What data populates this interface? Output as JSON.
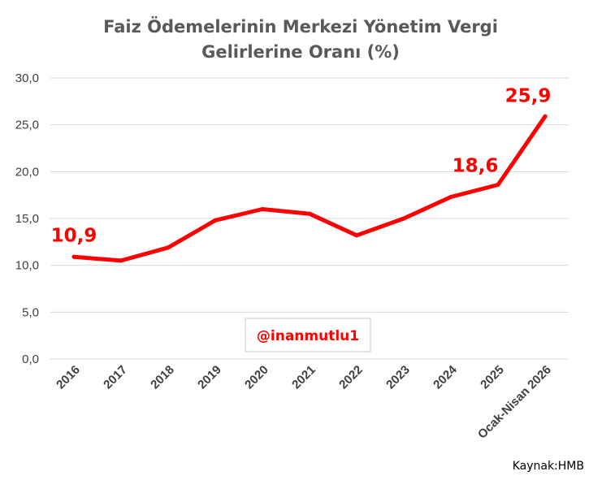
{
  "chart_data": {
    "type": "line",
    "title_lines": [
      "Faiz Ödemelerinin Merkezi Yönetim Vergi",
      "Gelirlerine Oranı (%)"
    ],
    "categories": [
      "2016",
      "2017",
      "2018",
      "2019",
      "2020",
      "2021",
      "2022",
      "2023",
      "2024",
      "2025",
      "Ocak-Nisan 2026"
    ],
    "series": [
      {
        "values": [
          10.9,
          10.5,
          11.9,
          14.8,
          16.0,
          15.5,
          13.2,
          15.0,
          17.3,
          18.6,
          25.9
        ],
        "color": "#ff0000"
      }
    ],
    "ylim": [
      0,
      30
    ],
    "yticks": [
      {
        "value": 0,
        "label": "0,0"
      },
      {
        "value": 5,
        "label": "5,0"
      },
      {
        "value": 10,
        "label": "10,0"
      },
      {
        "value": 15,
        "label": "15,0"
      },
      {
        "value": 20,
        "label": "20,0"
      },
      {
        "value": 25,
        "label": "25,0"
      },
      {
        "value": 30,
        "label": "30,0"
      }
    ],
    "data_labels": [
      {
        "index": 0,
        "label": "10,9"
      },
      {
        "index": 9,
        "label": "18,6"
      },
      {
        "index": 10,
        "label": "25,9"
      }
    ],
    "grid": true,
    "gridline_color": "#d9d9d9",
    "legend": "none",
    "watermark": "@inanmutlu1",
    "source": "Kaynak:HMB"
  }
}
